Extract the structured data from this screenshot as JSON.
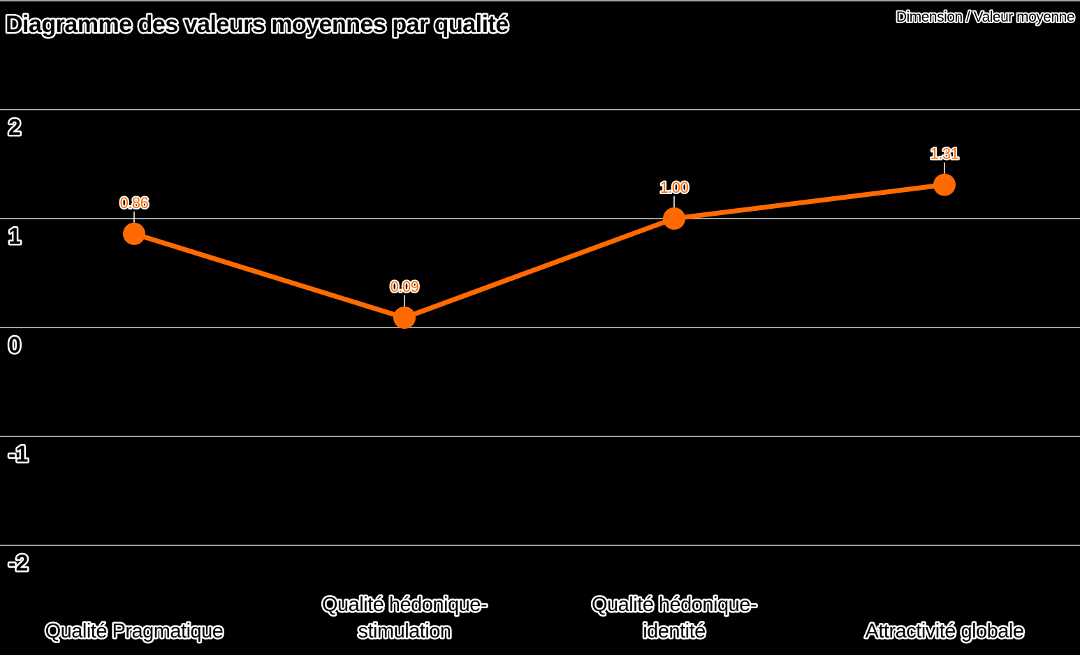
{
  "chart_data": {
    "type": "line",
    "title": "Diagramme des valeurs moyennes par qualité",
    "subtitle": "Dimension / Valeur moyenne",
    "categories": [
      [
        "Qualité Pragmatique"
      ],
      [
        "Qualité hédonique-",
        "stimulation"
      ],
      [
        "Qualité hédonique-",
        "identité"
      ],
      [
        "Attractivité globale"
      ]
    ],
    "series": [
      {
        "values": [
          0.86,
          0.09,
          1.0,
          1.31
        ],
        "labels": [
          "0.86",
          "0.09",
          "1.00",
          "1.31"
        ]
      }
    ],
    "yticks": [
      2,
      1,
      0,
      -1,
      -2
    ],
    "ylim": [
      -2,
      2
    ],
    "grid": true,
    "colors": {
      "line": "#ff6a00",
      "background": "#000000",
      "grid": "#d9d9d9"
    }
  }
}
